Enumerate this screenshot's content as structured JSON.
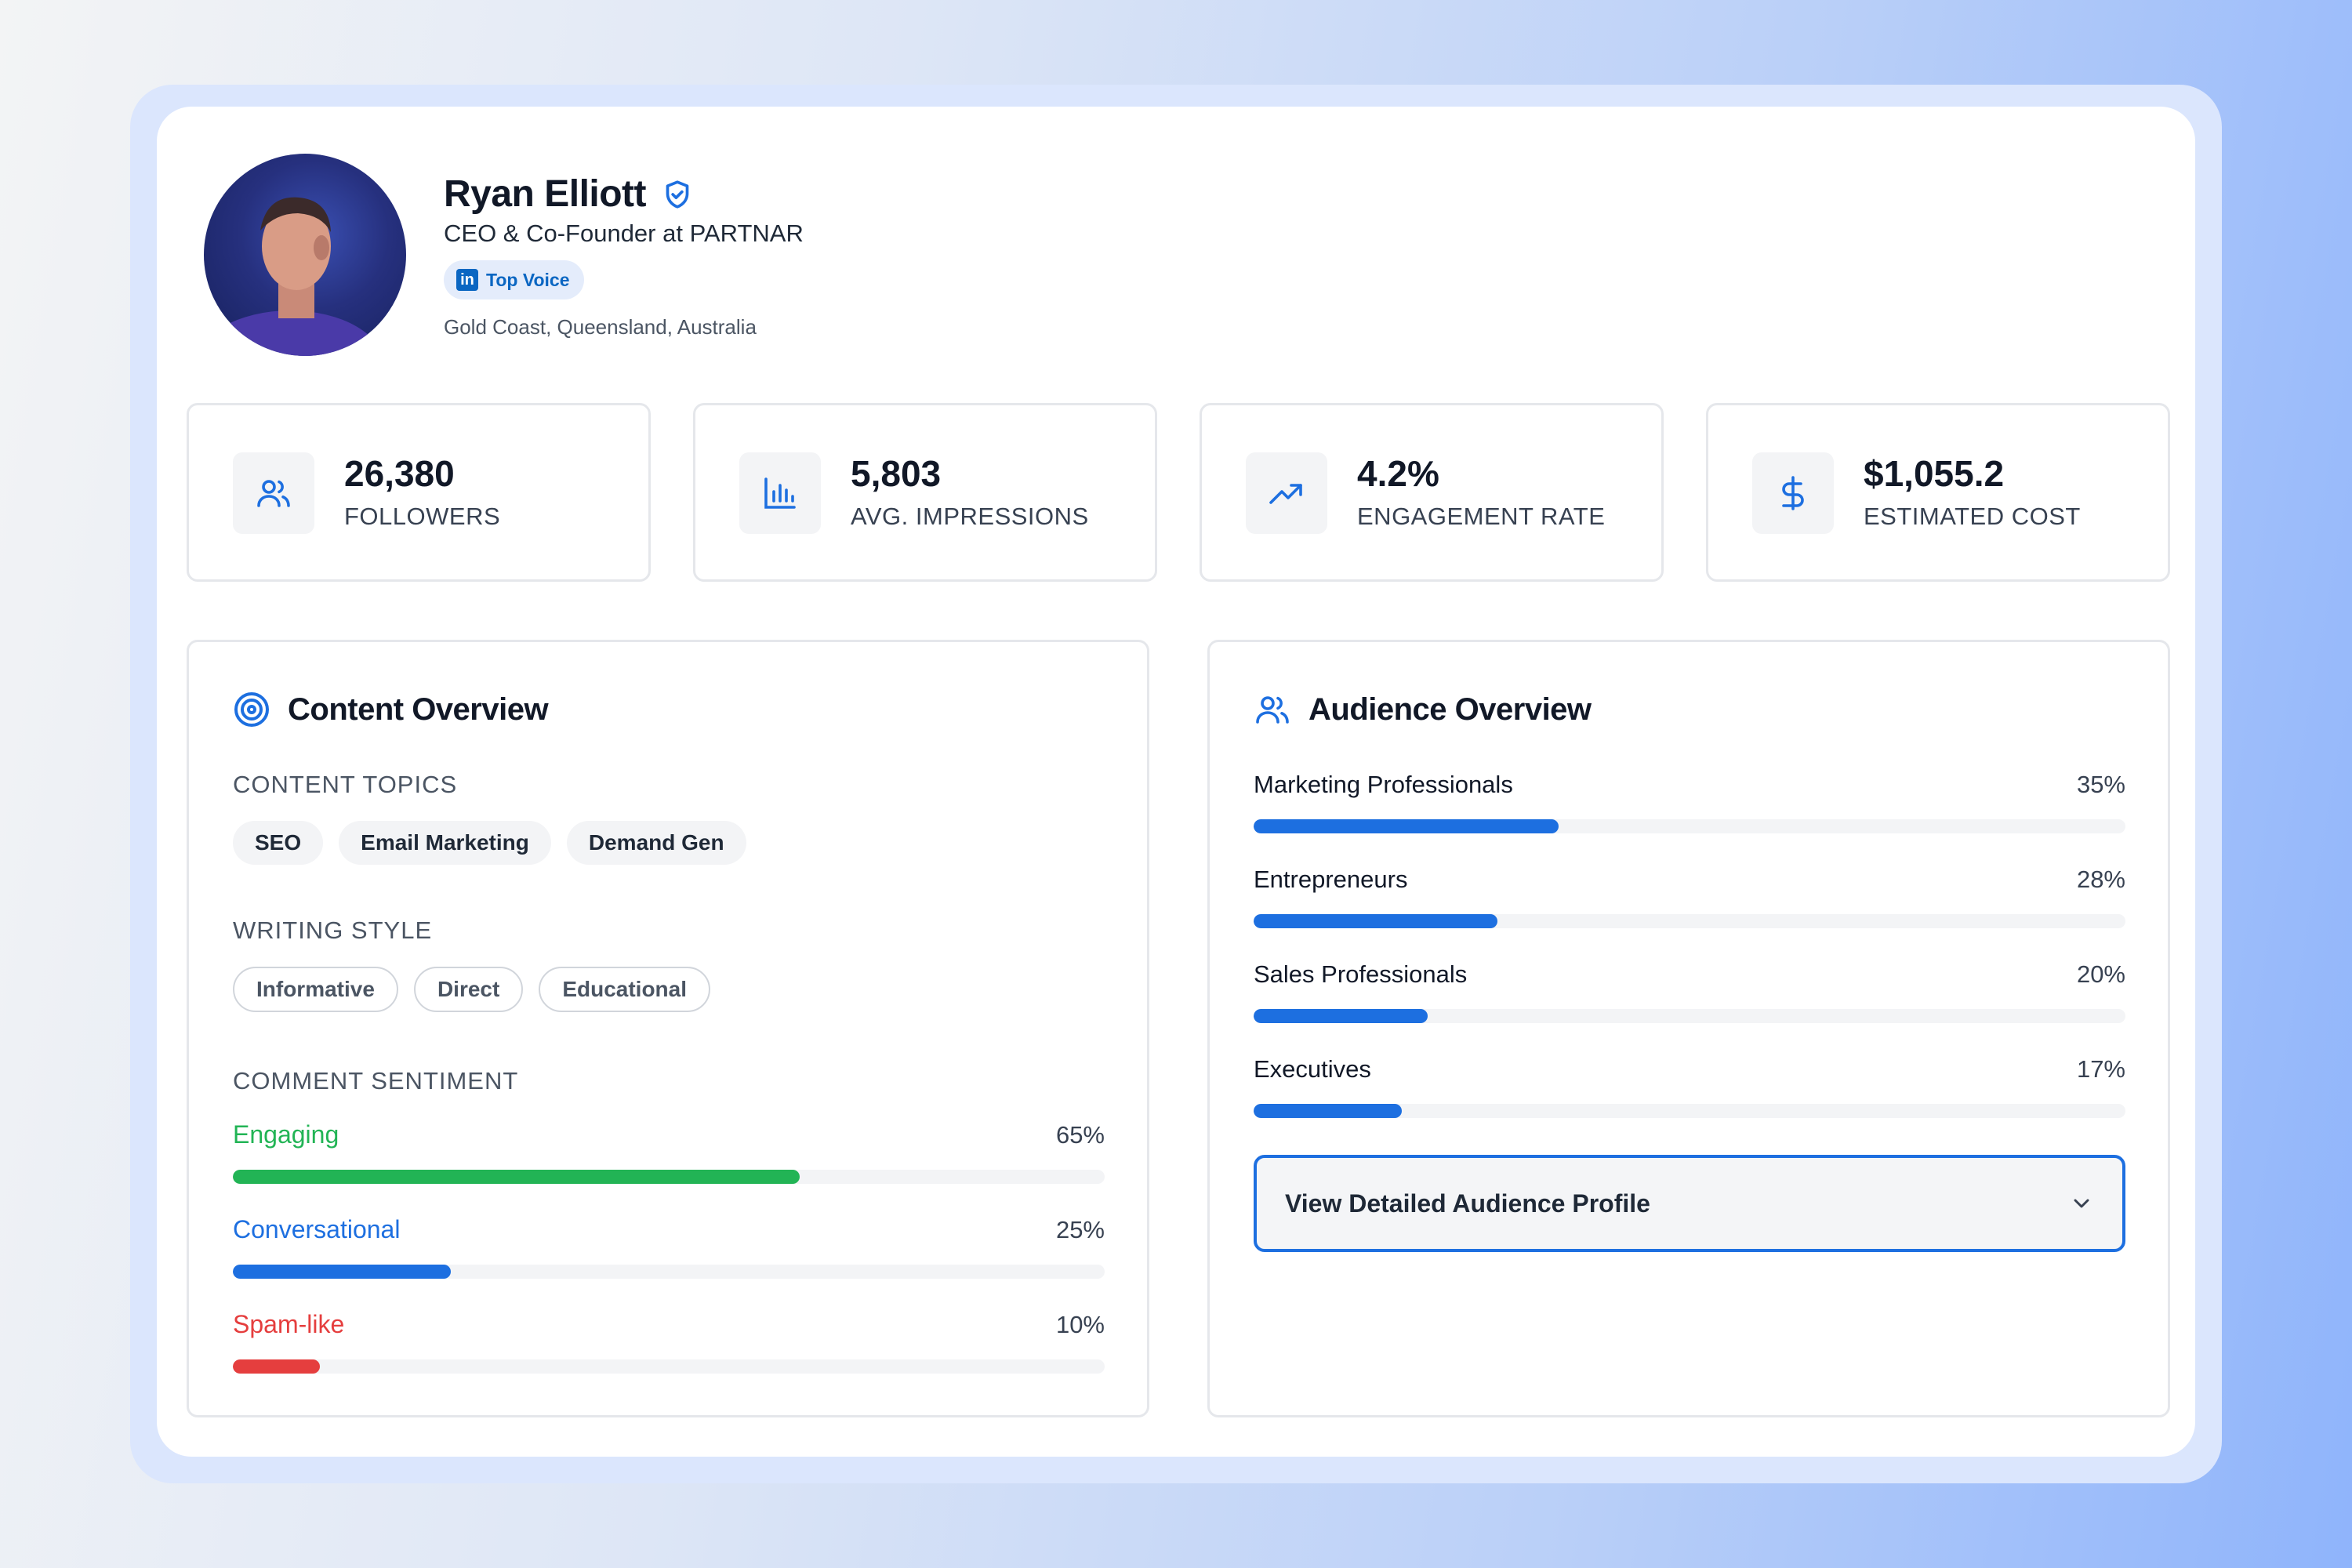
{
  "profile": {
    "name": "Ryan Elliott",
    "title": "CEO & Co-Founder at PARTNAR",
    "badge_icon": "in",
    "badge_label": "Top Voice",
    "location": "Gold Coast, Queensland, Australia"
  },
  "stats": [
    {
      "icon": "users-icon",
      "value": "26,380",
      "label": "FOLLOWERS"
    },
    {
      "icon": "bar-chart-icon",
      "value": "5,803",
      "label": "AVG. IMPRESSIONS"
    },
    {
      "icon": "trending-up-icon",
      "value": "4.2%",
      "label": "ENGAGEMENT RATE"
    },
    {
      "icon": "dollar-icon",
      "value": "$1,055.2",
      "label": "ESTIMATED COST"
    }
  ],
  "content_overview": {
    "title": "Content Overview",
    "topics_label": "CONTENT TOPICS",
    "topics": [
      "SEO",
      "Email Marketing",
      "Demand Gen"
    ],
    "style_label": "WRITING STYLE",
    "styles": [
      "Informative",
      "Direct",
      "Educational"
    ],
    "sentiment_label": "COMMENT SENTIMENT",
    "sentiment": [
      {
        "label": "Engaging",
        "pct_text": "65%",
        "value": 65,
        "color": "#22b455"
      },
      {
        "label": "Conversational",
        "pct_text": "25%",
        "value": 25,
        "color": "#1d6fe0"
      },
      {
        "label": "Spam-like",
        "pct_text": "10%",
        "value": 10,
        "color": "#e53e3e"
      }
    ]
  },
  "audience_overview": {
    "title": "Audience Overview",
    "segments": [
      {
        "label": "Marketing Professionals",
        "pct_text": "35%",
        "value": 35
      },
      {
        "label": "Entrepreneurs",
        "pct_text": "28%",
        "value": 28
      },
      {
        "label": "Sales Professionals",
        "pct_text": "20%",
        "value": 20
      },
      {
        "label": "Executives",
        "pct_text": "17%",
        "value": 17
      }
    ],
    "bar_color": "#1d6fe0",
    "dropdown_label": "View Detailed Audience Profile"
  },
  "colors": {
    "accent": "#1d6fe0",
    "linkedin": "#0a66c2"
  }
}
